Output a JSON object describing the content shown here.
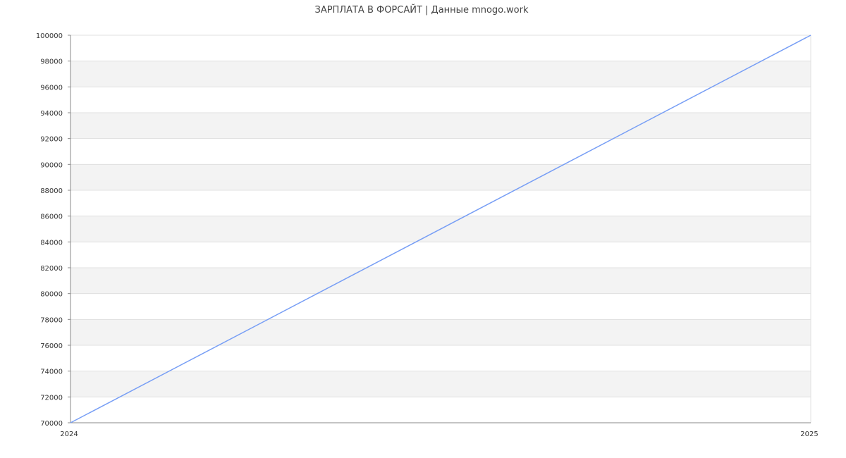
{
  "chart_data": {
    "type": "line",
    "title": "ЗАРПЛАТА В ФОРСАЙТ | Данные mnogo.work",
    "xlabel": "",
    "ylabel": "",
    "x": [
      2024,
      2025
    ],
    "x_tick_labels": [
      "2024",
      "2025"
    ],
    "series": [
      {
        "values": [
          70000,
          100000
        ]
      }
    ],
    "ylim": [
      70000,
      100000
    ],
    "y_ticks": [
      70000,
      72000,
      74000,
      76000,
      78000,
      80000,
      82000,
      84000,
      86000,
      88000,
      90000,
      92000,
      94000,
      96000,
      98000,
      100000
    ],
    "grid": true,
    "alternating_bands": true,
    "colors": {
      "line": "#779ef5",
      "band": "#f3f3f3",
      "grid": "#e0e0e0",
      "axis": "#888888",
      "text": "#333333"
    }
  }
}
